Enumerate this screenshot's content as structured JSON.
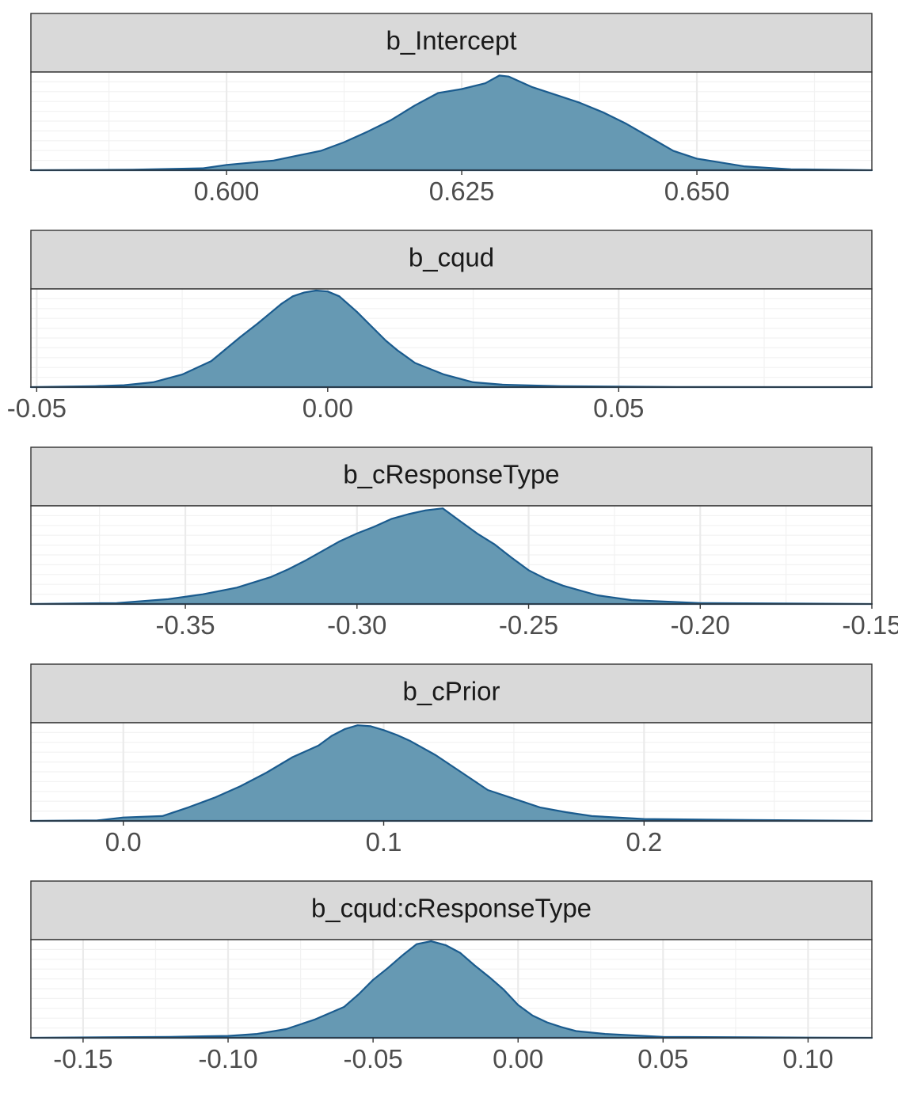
{
  "chart_data": [
    {
      "type": "area",
      "title": "b_Intercept",
      "xlim": [
        0.5792,
        0.6686
      ],
      "ticks": [
        0.6,
        0.625,
        0.65
      ],
      "tick_labels": [
        "0.600",
        "0.625",
        "0.650"
      ],
      "x": [
        0.5792,
        0.59,
        0.5975,
        0.6,
        0.605,
        0.61,
        0.6125,
        0.615,
        0.6175,
        0.62,
        0.6225,
        0.625,
        0.6275,
        0.629,
        0.63,
        0.6325,
        0.635,
        0.6375,
        0.64,
        0.6425,
        0.645,
        0.6475,
        0.65,
        0.6525,
        0.655,
        0.66,
        0.6686
      ],
      "y": [
        0.0,
        0.005,
        0.02,
        0.055,
        0.1,
        0.2,
        0.29,
        0.4,
        0.52,
        0.67,
        0.8,
        0.84,
        0.9,
        0.98,
        0.97,
        0.86,
        0.78,
        0.7,
        0.6,
        0.48,
        0.34,
        0.2,
        0.12,
        0.08,
        0.04,
        0.01,
        0.0
      ]
    },
    {
      "type": "area",
      "title": "b_cqud",
      "xlim": [
        -0.051,
        0.0935
      ],
      "ticks": [
        -0.05,
        0.0,
        0.05
      ],
      "tick_labels": [
        "-0.05",
        "0.00",
        "0.05"
      ],
      "x": [
        -0.051,
        -0.04,
        -0.035,
        -0.03,
        -0.025,
        -0.02,
        -0.015,
        -0.012,
        -0.01,
        -0.008,
        -0.006,
        -0.004,
        -0.002,
        0.0,
        0.002,
        0.005,
        0.007,
        0.01,
        0.012,
        0.015,
        0.02,
        0.025,
        0.03,
        0.04,
        0.05,
        0.06,
        0.0935
      ],
      "y": [
        0.0,
        0.01,
        0.02,
        0.05,
        0.13,
        0.27,
        0.52,
        0.66,
        0.76,
        0.86,
        0.94,
        0.98,
        1.0,
        0.99,
        0.94,
        0.78,
        0.66,
        0.48,
        0.38,
        0.25,
        0.13,
        0.05,
        0.025,
        0.01,
        0.005,
        0.002,
        0.0
      ]
    },
    {
      "type": "area",
      "title": "b_cResponseType",
      "xlim": [
        -0.395,
        -0.15
      ],
      "ticks": [
        -0.35,
        -0.3,
        -0.25,
        -0.2,
        -0.15
      ],
      "tick_labels": [
        "-0.35",
        "-0.30",
        "-0.25",
        "-0.20",
        "-0.15"
      ],
      "x": [
        -0.395,
        -0.37,
        -0.355,
        -0.345,
        -0.335,
        -0.325,
        -0.32,
        -0.315,
        -0.31,
        -0.305,
        -0.3,
        -0.295,
        -0.29,
        -0.285,
        -0.28,
        -0.275,
        -0.27,
        -0.265,
        -0.26,
        -0.255,
        -0.25,
        -0.245,
        -0.24,
        -0.23,
        -0.22,
        -0.2,
        -0.15
      ],
      "y": [
        0.0,
        0.01,
        0.05,
        0.1,
        0.17,
        0.28,
        0.36,
        0.45,
        0.55,
        0.65,
        0.73,
        0.8,
        0.88,
        0.93,
        0.97,
        0.99,
        0.86,
        0.73,
        0.62,
        0.48,
        0.35,
        0.26,
        0.19,
        0.09,
        0.04,
        0.01,
        0.0
      ]
    },
    {
      "type": "area",
      "title": "b_cPrior",
      "xlim": [
        -0.0355,
        0.2875
      ],
      "ticks": [
        0.0,
        0.1,
        0.2
      ],
      "tick_labels": [
        "0.0",
        "0.1",
        "0.2"
      ],
      "x": [
        -0.0355,
        -0.01,
        0.0,
        0.015,
        0.025,
        0.035,
        0.045,
        0.055,
        0.065,
        0.075,
        0.08,
        0.085,
        0.09,
        0.095,
        0.1,
        0.105,
        0.11,
        0.12,
        0.13,
        0.14,
        0.15,
        0.16,
        0.17,
        0.18,
        0.2,
        0.24,
        0.2875
      ],
      "y": [
        0.0,
        0.005,
        0.035,
        0.05,
        0.14,
        0.24,
        0.36,
        0.5,
        0.66,
        0.78,
        0.88,
        0.95,
        0.99,
        0.98,
        0.94,
        0.89,
        0.83,
        0.68,
        0.5,
        0.32,
        0.23,
        0.14,
        0.09,
        0.05,
        0.02,
        0.01,
        0.0
      ]
    },
    {
      "type": "area",
      "title": "b_cqud:cResponseType",
      "xlim": [
        -0.168,
        0.122
      ],
      "ticks": [
        -0.15,
        -0.1,
        -0.05,
        0.0,
        0.05,
        0.1
      ],
      "tick_labels": [
        "-0.15",
        "-0.10",
        "-0.05",
        "0.00",
        "0.05",
        "0.10"
      ],
      "x": [
        -0.168,
        -0.12,
        -0.1,
        -0.09,
        -0.08,
        -0.07,
        -0.06,
        -0.055,
        -0.05,
        -0.045,
        -0.04,
        -0.035,
        -0.03,
        -0.025,
        -0.02,
        -0.015,
        -0.01,
        -0.005,
        0.0,
        0.005,
        0.01,
        0.015,
        0.02,
        0.03,
        0.05,
        0.08,
        0.122
      ],
      "y": [
        0.0,
        0.01,
        0.02,
        0.04,
        0.09,
        0.19,
        0.32,
        0.45,
        0.6,
        0.72,
        0.85,
        0.97,
        1.0,
        0.96,
        0.88,
        0.75,
        0.63,
        0.5,
        0.34,
        0.23,
        0.16,
        0.11,
        0.07,
        0.04,
        0.01,
        0.005,
        0.0
      ]
    }
  ],
  "colors": {
    "fill": "#6699b3",
    "stroke": "#1a5b8e",
    "strip": "#d9d9d9",
    "grid": "#ebebeb"
  }
}
